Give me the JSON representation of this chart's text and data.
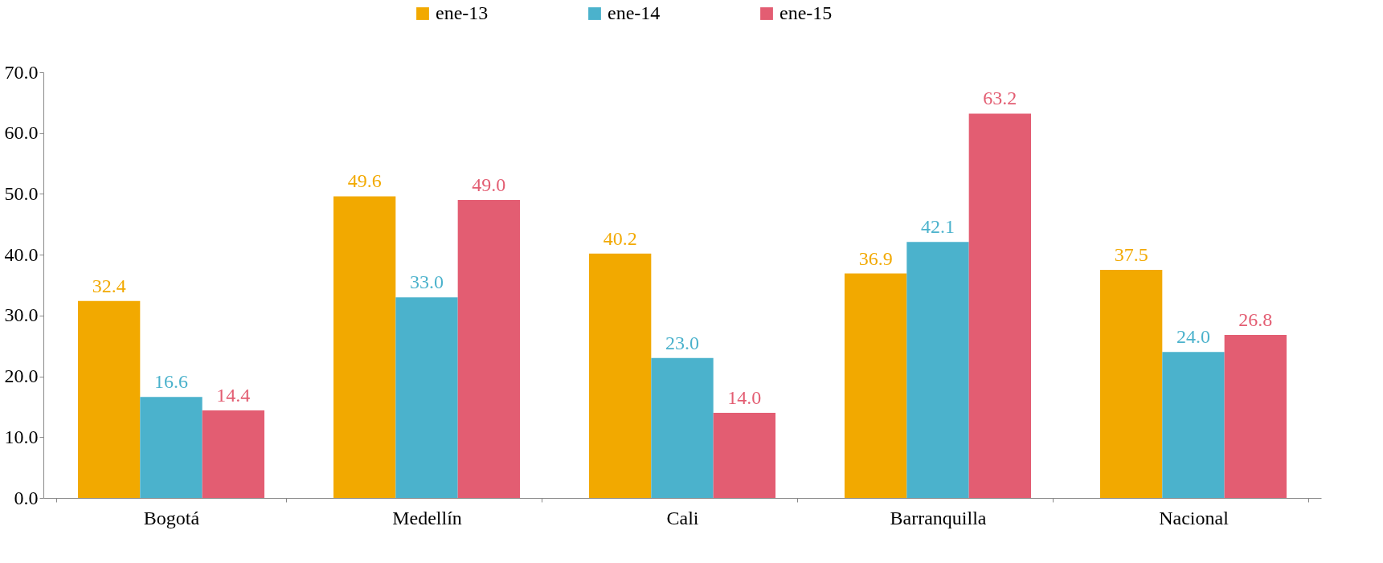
{
  "chart_data": {
    "type": "bar",
    "categories": [
      "Bogotá",
      "Medellín",
      "Cali",
      "Barranquilla",
      "Nacional"
    ],
    "series": [
      {
        "name": "ene-13",
        "color": "#f2a900",
        "values": [
          32.4,
          49.6,
          40.2,
          36.9,
          37.5
        ],
        "value_labels": [
          "32.4",
          "49.6",
          "40.2",
          "36.9",
          "37.5"
        ]
      },
      {
        "name": "ene-14",
        "color": "#4bb2cc",
        "values": [
          16.6,
          33.0,
          23.0,
          42.1,
          24.0
        ],
        "value_labels": [
          "16.6",
          "33.0",
          "23.0",
          "42.1",
          "24.0"
        ]
      },
      {
        "name": "ene-15",
        "color": "#e35d72",
        "values": [
          14.4,
          49.0,
          14.0,
          63.2,
          26.8
        ],
        "value_labels": [
          "14.4",
          "49.0",
          "14.0",
          "63.2",
          "26.8"
        ]
      }
    ],
    "ylim": [
      0,
      70
    ],
    "yticks": [
      {
        "value": 0,
        "label": "0.0"
      },
      {
        "value": 10,
        "label": "10.0"
      },
      {
        "value": 20,
        "label": "20.0"
      },
      {
        "value": 30,
        "label": "30.0"
      },
      {
        "value": 40,
        "label": "40.0"
      },
      {
        "value": 50,
        "label": "50.0"
      },
      {
        "value": 60,
        "label": "60.0"
      },
      {
        "value": 70,
        "label": "70.0"
      }
    ],
    "grid": false,
    "legend": "top"
  }
}
